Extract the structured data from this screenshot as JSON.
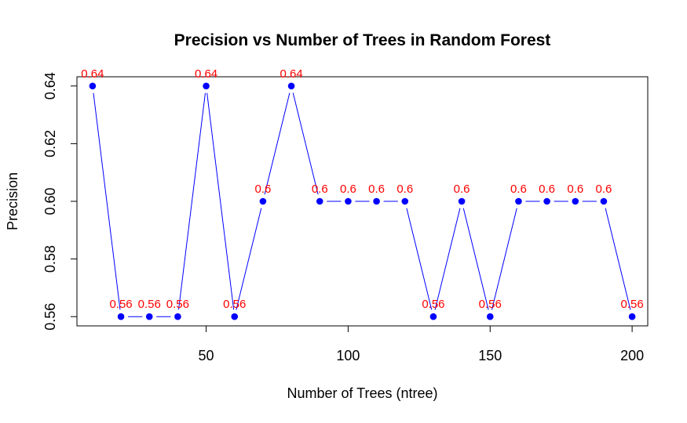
{
  "chart_data": {
    "type": "line",
    "title": "Precision vs Number of Trees in Random Forest",
    "xlabel": "Number of Trees (ntree)",
    "ylabel": "Precision",
    "xlim": [
      4.5,
      205.5
    ],
    "ylim": [
      0.5568,
      0.6432
    ],
    "x_ticks": [
      50,
      100,
      150,
      200
    ],
    "x_tick_labels": [
      "50",
      "100",
      "150",
      "200"
    ],
    "y_ticks": [
      0.56,
      0.58,
      0.6,
      0.62,
      0.64
    ],
    "y_tick_labels": [
      "0.56",
      "0.58",
      "0.60",
      "0.62",
      "0.64"
    ],
    "grid": false,
    "series": [
      {
        "x": [
          10,
          20,
          30,
          40,
          50,
          60,
          70,
          80,
          90,
          100,
          110,
          120,
          130,
          140,
          150,
          160,
          170,
          180,
          190,
          200
        ],
        "values": [
          0.64,
          0.56,
          0.56,
          0.56,
          0.64,
          0.56,
          0.6,
          0.64,
          0.6,
          0.6,
          0.6,
          0.6,
          0.56,
          0.6,
          0.56,
          0.6,
          0.6,
          0.6,
          0.6,
          0.56
        ],
        "labels": [
          "0.64",
          "0.56",
          "0.56",
          "0.56",
          "0.64",
          "0.56",
          "0.6",
          "0.64",
          "0.6",
          "0.6",
          "0.6",
          "0.6",
          "0.56",
          "0.6",
          "0.56",
          "0.6",
          "0.6",
          "0.6",
          "0.6",
          "0.56"
        ]
      }
    ],
    "colors": {
      "line": "#0000ff",
      "point": "#0000ff",
      "label": "#ff0000",
      "axis": "#000000"
    }
  }
}
